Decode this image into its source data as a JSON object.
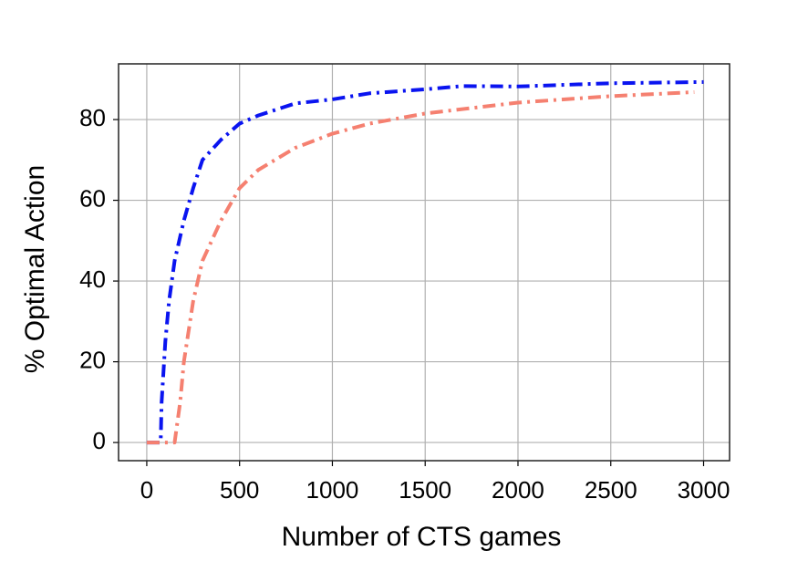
{
  "chart_data": {
    "type": "line",
    "xlabel": "Number of CTS games",
    "ylabel": "% Optimal Action",
    "xlim": [
      -152,
      3140
    ],
    "ylim": [
      -4.5,
      93.8
    ],
    "xticks": [
      0,
      500,
      1000,
      1500,
      2000,
      2500,
      3000
    ],
    "yticks": [
      0,
      20,
      40,
      60,
      80
    ],
    "grid": true,
    "series": [
      {
        "color": "#0a14f0",
        "x": [
          0,
          75,
          80,
          100,
          120,
          150,
          200,
          250,
          300,
          400,
          500,
          600,
          800,
          1000,
          1200,
          1500,
          1700,
          2000,
          2500,
          3000
        ],
        "values": [
          0,
          0,
          10,
          25,
          35,
          45,
          55,
          63,
          70,
          75,
          79,
          81,
          84,
          85,
          86.5,
          87.5,
          88.3,
          88.2,
          89,
          89.3
        ]
      },
      {
        "color": "#f58070",
        "x": [
          0,
          150,
          180,
          200,
          250,
          300,
          400,
          500,
          600,
          800,
          1000,
          1200,
          1500,
          2000,
          2500,
          2950
        ],
        "values": [
          0,
          0,
          10,
          20,
          35,
          45,
          55,
          63,
          67.5,
          73,
          76.5,
          79,
          81.5,
          84.2,
          85.8,
          86.8
        ]
      }
    ]
  }
}
